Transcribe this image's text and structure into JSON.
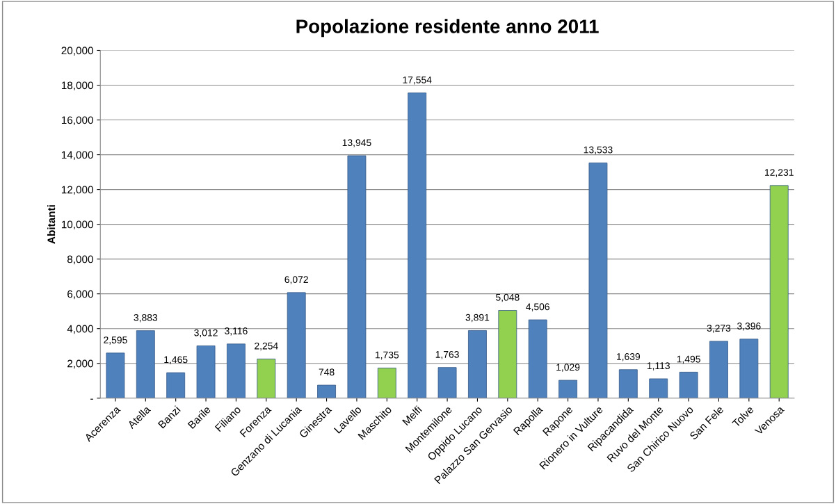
{
  "chart_data": {
    "type": "bar",
    "title": "Popolazione residente anno 2011",
    "ylabel": "Abitanti",
    "categories": [
      "Acerenza",
      "Atella",
      "Banzi",
      "Barile",
      "Filiano",
      "Forenza",
      "Genzano di Lucania",
      "Ginestra",
      "Lavello",
      "Maschito",
      "Melfi",
      "Montemilone",
      "Oppido Lucano",
      "Palazzo San Gervasio",
      "Rapolla",
      "Rapone",
      "Rionero in Vulture",
      "Ripacandida",
      "Ruvo del Monte",
      "San Chirico Nuovo",
      "San Fele",
      "Tolve",
      "Venosa"
    ],
    "values": [
      2595,
      3883,
      1465,
      3012,
      3116,
      2254,
      6072,
      748,
      13945,
      1735,
      17554,
      1763,
      3891,
      5048,
      4506,
      1029,
      13533,
      1639,
      1113,
      1495,
      3273,
      3396,
      12231
    ],
    "value_labels": [
      "2,595",
      "3,883",
      "1,465",
      "3,012",
      "3,116",
      "2,254",
      "6,072",
      "748",
      "13,945",
      "1,735",
      "17,554",
      "1,763",
      "3,891",
      "5,048",
      "4,506",
      "1,029",
      "13,533",
      "1,639",
      "1,113",
      "1,495",
      "3,273",
      "3,396",
      "12,231"
    ],
    "colors": [
      "#4f81bd",
      "#4f81bd",
      "#4f81bd",
      "#4f81bd",
      "#4f81bd",
      "#92d050",
      "#4f81bd",
      "#4f81bd",
      "#4f81bd",
      "#92d050",
      "#4f81bd",
      "#4f81bd",
      "#4f81bd",
      "#92d050",
      "#4f81bd",
      "#4f81bd",
      "#4f81bd",
      "#4f81bd",
      "#4f81bd",
      "#4f81bd",
      "#4f81bd",
      "#4f81bd",
      "#92d050"
    ],
    "ylim": [
      0,
      20000
    ],
    "yticks": [
      {
        "value": 0,
        "label": "-"
      },
      {
        "value": 2000,
        "label": "2,000"
      },
      {
        "value": 4000,
        "label": "4,000"
      },
      {
        "value": 6000,
        "label": "6,000"
      },
      {
        "value": 8000,
        "label": "8,000"
      },
      {
        "value": 10000,
        "label": "10,000"
      },
      {
        "value": 12000,
        "label": "12,000"
      },
      {
        "value": 14000,
        "label": "14,000"
      },
      {
        "value": 16000,
        "label": "16,000"
      },
      {
        "value": 18000,
        "label": "18,000"
      },
      {
        "value": 20000,
        "label": "20,000"
      }
    ],
    "grid": "y"
  }
}
